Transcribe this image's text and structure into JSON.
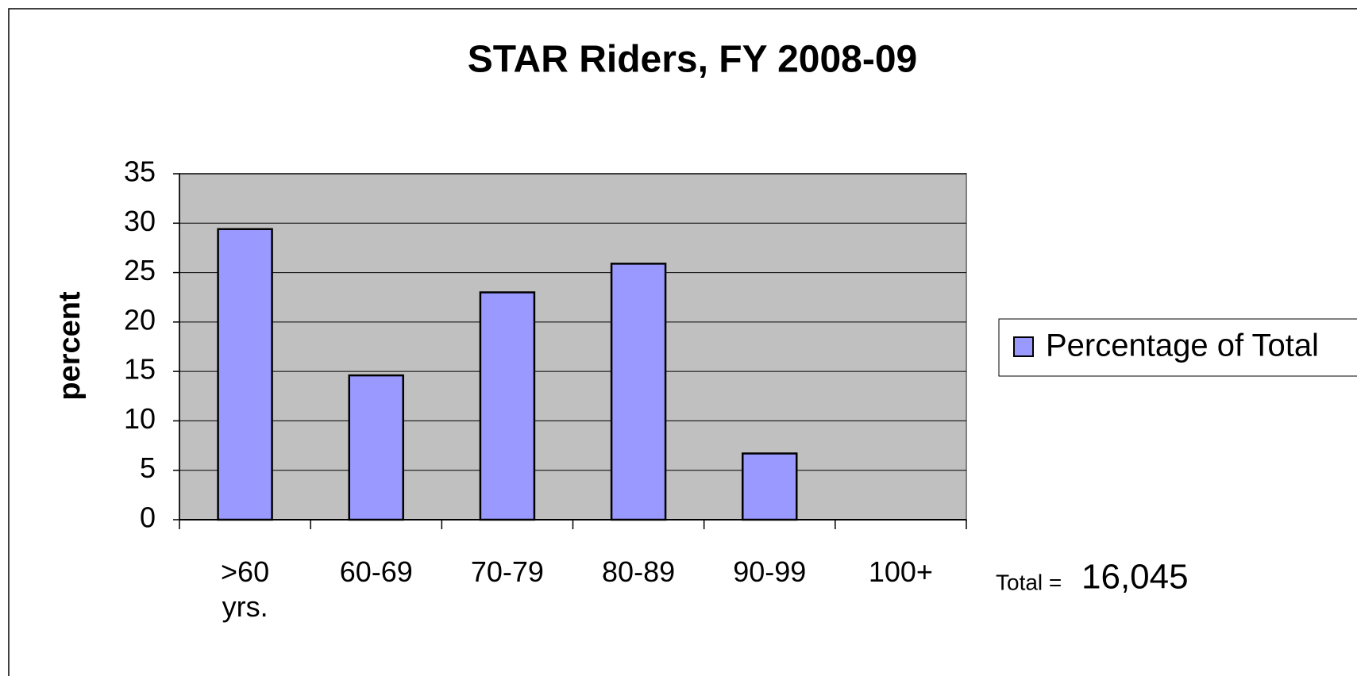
{
  "chart_data": {
    "type": "bar",
    "title": "STAR Riders, FY 2008-09",
    "y_label": "percent",
    "categories": [
      ">60 yrs.",
      "60-69",
      "70-79",
      "80-89",
      "90-99",
      "100+"
    ],
    "series": [
      {
        "name": "Percentage of Total",
        "color": "#9999ff",
        "values": [
          29.4,
          14.6,
          23,
          25.9,
          6.7,
          0
        ]
      }
    ],
    "ylim": [
      0,
      35
    ],
    "yticks": [
      0,
      5,
      10,
      15,
      20,
      25,
      30,
      35
    ],
    "grid": true,
    "legend": "right",
    "annotations": [
      {
        "text": "Total ="
      },
      {
        "text": "16,045"
      }
    ]
  }
}
